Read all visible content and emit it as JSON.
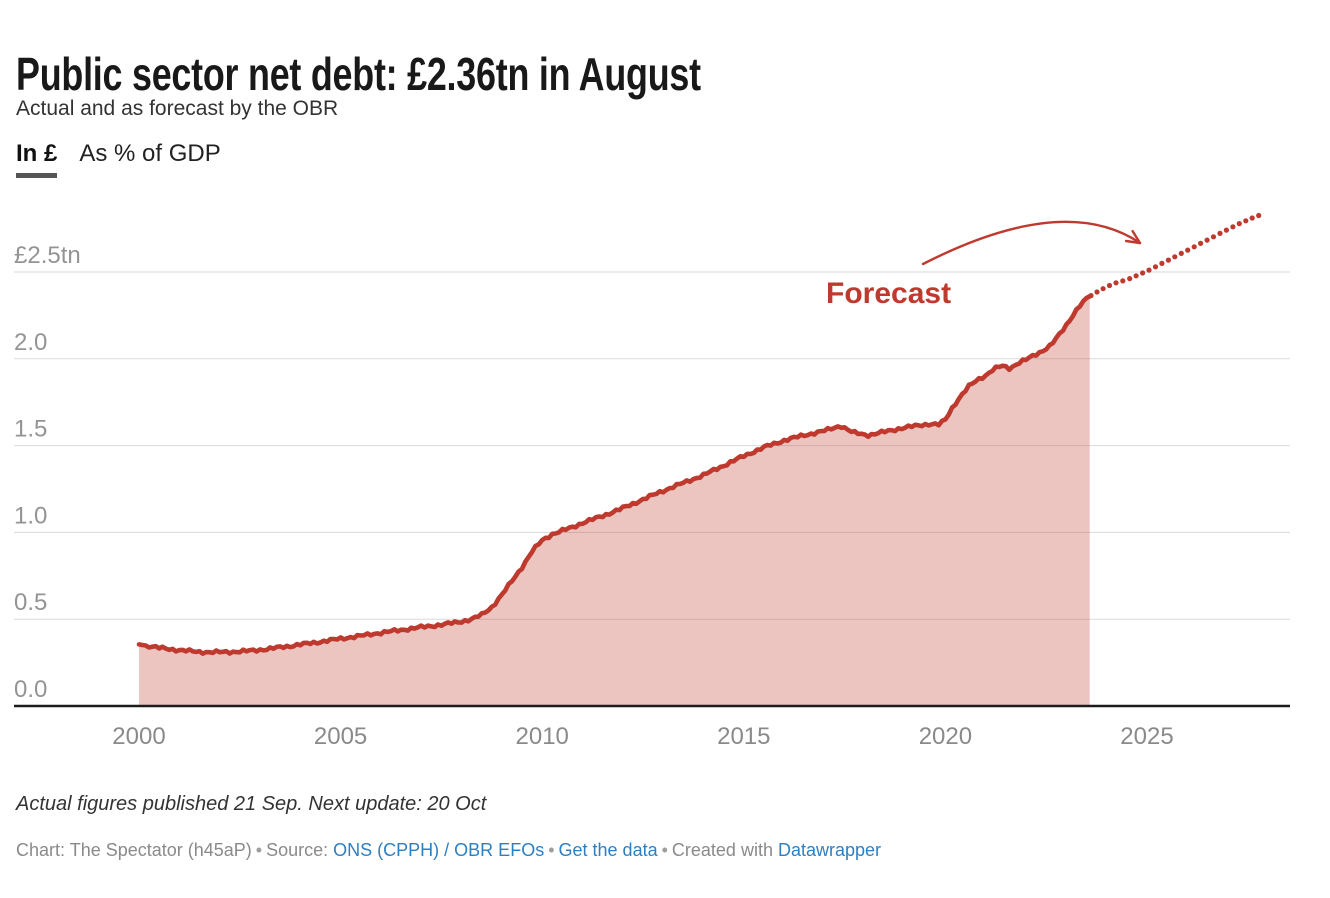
{
  "header": {
    "title": "Public sector net debt: £2.36tn in August",
    "subtitle": "Actual and as forecast by the OBR",
    "tabs": [
      {
        "label": "In £",
        "active": true
      },
      {
        "label": "As % of GDP",
        "active": false
      }
    ]
  },
  "chart_data": {
    "type": "area",
    "title": "Public sector net debt, actual and OBR forecast",
    "unit": "£tn",
    "x_axis": {
      "ticks": [
        2000,
        2005,
        2010,
        2015,
        2020,
        2025
      ],
      "range": [
        2000,
        2028.4
      ]
    },
    "y_axis": {
      "range": [
        0,
        2.9
      ],
      "gridlines": true,
      "ticks": [
        {
          "value": 2.5,
          "label": "£2.5tn"
        },
        {
          "value": 2.0,
          "label": "2.0"
        },
        {
          "value": 1.5,
          "label": "1.5"
        },
        {
          "value": 1.0,
          "label": "1.0"
        },
        {
          "value": 0.5,
          "label": "0.5"
        },
        {
          "value": 0.0,
          "label": "0.0"
        }
      ]
    },
    "series": [
      {
        "name": "Actual",
        "style": "solid-line-with-area-fill",
        "points": [
          [
            2000,
            0.355
          ],
          [
            2000.25,
            0.345
          ],
          [
            2000.5,
            0.335
          ],
          [
            2000.75,
            0.328
          ],
          [
            2001,
            0.322
          ],
          [
            2001.25,
            0.316
          ],
          [
            2001.5,
            0.312
          ],
          [
            2001.75,
            0.31
          ],
          [
            2002,
            0.31
          ],
          [
            2002.25,
            0.312
          ],
          [
            2002.5,
            0.314
          ],
          [
            2002.75,
            0.318
          ],
          [
            2003,
            0.324
          ],
          [
            2003.25,
            0.33
          ],
          [
            2003.5,
            0.338
          ],
          [
            2003.75,
            0.346
          ],
          [
            2004,
            0.354
          ],
          [
            2004.25,
            0.362
          ],
          [
            2004.5,
            0.37
          ],
          [
            2004.75,
            0.379
          ],
          [
            2005,
            0.388
          ],
          [
            2005.25,
            0.396
          ],
          [
            2005.5,
            0.404
          ],
          [
            2005.75,
            0.413
          ],
          [
            2006,
            0.422
          ],
          [
            2006.25,
            0.43
          ],
          [
            2006.5,
            0.438
          ],
          [
            2006.75,
            0.446
          ],
          [
            2007,
            0.454
          ],
          [
            2007.25,
            0.461
          ],
          [
            2007.5,
            0.468
          ],
          [
            2007.75,
            0.477
          ],
          [
            2008,
            0.487
          ],
          [
            2008.25,
            0.5
          ],
          [
            2008.5,
            0.525
          ],
          [
            2008.75,
            0.57
          ],
          [
            2009,
            0.64
          ],
          [
            2009.25,
            0.72
          ],
          [
            2009.5,
            0.8
          ],
          [
            2009.75,
            0.89
          ],
          [
            2010,
            0.955
          ],
          [
            2010.25,
            0.99
          ],
          [
            2010.5,
            1.01
          ],
          [
            2010.75,
            1.03
          ],
          [
            2011,
            1.055
          ],
          [
            2011.5,
            1.095
          ],
          [
            2012,
            1.14
          ],
          [
            2012.5,
            1.19
          ],
          [
            2013,
            1.24
          ],
          [
            2013.5,
            1.285
          ],
          [
            2014,
            1.33
          ],
          [
            2014.5,
            1.385
          ],
          [
            2015,
            1.44
          ],
          [
            2015.5,
            1.49
          ],
          [
            2016,
            1.53
          ],
          [
            2016.5,
            1.56
          ],
          [
            2017,
            1.585
          ],
          [
            2017.4,
            1.615
          ],
          [
            2017.7,
            1.575
          ],
          [
            2018.1,
            1.56
          ],
          [
            2018.5,
            1.58
          ],
          [
            2018.9,
            1.6
          ],
          [
            2019.3,
            1.615
          ],
          [
            2019.6,
            1.625
          ],
          [
            2019.85,
            1.62
          ],
          [
            2020,
            1.65
          ],
          [
            2020.2,
            1.73
          ],
          [
            2020.4,
            1.79
          ],
          [
            2020.6,
            1.845
          ],
          [
            2020.8,
            1.88
          ],
          [
            2021,
            1.905
          ],
          [
            2021.2,
            1.94
          ],
          [
            2021.4,
            1.96
          ],
          [
            2021.6,
            1.945
          ],
          [
            2021.8,
            1.975
          ],
          [
            2022,
            1.995
          ],
          [
            2022.2,
            2.02
          ],
          [
            2022.4,
            2.045
          ],
          [
            2022.6,
            2.075
          ],
          [
            2022.8,
            2.13
          ],
          [
            2023,
            2.195
          ],
          [
            2023.2,
            2.265
          ],
          [
            2023.35,
            2.31
          ],
          [
            2023.5,
            2.345
          ],
          [
            2023.58,
            2.36
          ]
        ]
      },
      {
        "name": "Forecast (OBR)",
        "style": "dotted-line",
        "points": [
          [
            2023.58,
            2.36
          ],
          [
            2023.8,
            2.39
          ],
          [
            2024,
            2.415
          ],
          [
            2024.25,
            2.44
          ],
          [
            2024.5,
            2.455
          ],
          [
            2024.75,
            2.48
          ],
          [
            2025,
            2.505
          ],
          [
            2025.25,
            2.535
          ],
          [
            2025.5,
            2.565
          ],
          [
            2025.75,
            2.595
          ],
          [
            2026,
            2.625
          ],
          [
            2026.25,
            2.655
          ],
          [
            2026.5,
            2.685
          ],
          [
            2026.75,
            2.715
          ],
          [
            2027,
            2.745
          ],
          [
            2027.25,
            2.775
          ],
          [
            2027.5,
            2.8
          ],
          [
            2027.7,
            2.82
          ],
          [
            2027.9,
            2.835
          ]
        ]
      }
    ],
    "annotation": {
      "label": "Forecast"
    }
  },
  "footer": {
    "note": "Actual figures published 21 Sep. Next update: 20 Oct",
    "attribution": {
      "chart": "Chart: The Spectator (h45aP)",
      "separator": "•",
      "source_prefix": "Source:",
      "source_link": "ONS (CPPH) / OBR EFOs",
      "get_data_link": "Get the data",
      "created_prefix": "Created with",
      "created_link": "Datawrapper"
    }
  },
  "colors": {
    "line": "#bf3a2e",
    "fill": "rgba(191,58,46,0.30)",
    "grid": "#dadada",
    "axis": "#1c1c1c",
    "y_tick_text": "#949494",
    "x_tick_text": "#8a8a8a",
    "link": "#2e7fc2"
  }
}
